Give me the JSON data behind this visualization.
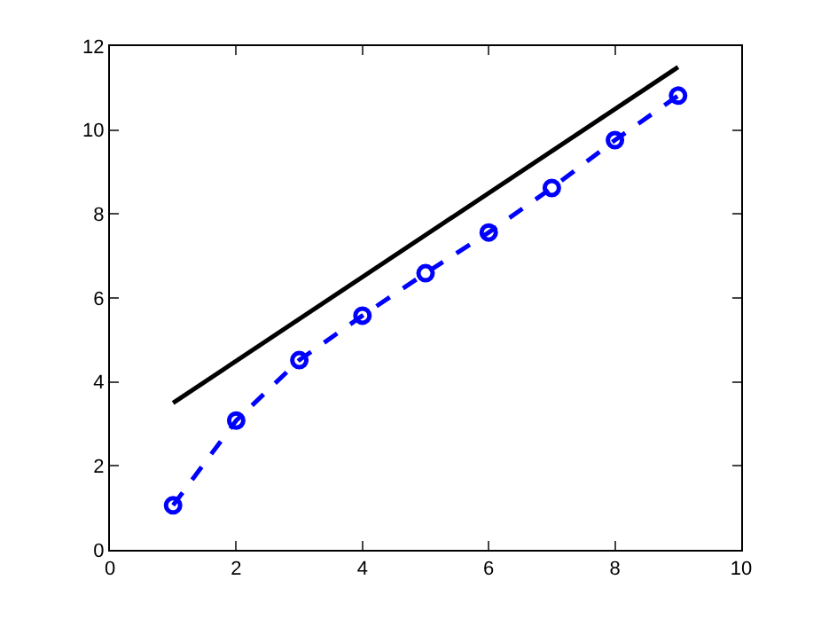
{
  "chart_data": {
    "type": "line",
    "x": [
      1,
      2,
      3,
      4,
      5,
      6,
      7,
      8,
      9
    ],
    "series": [
      {
        "color": "#000000",
        "x": [
          1,
          9
        ],
        "values": [
          3.5,
          11.5
        ],
        "line_style": "solid",
        "marker": "none"
      },
      {
        "color": "#0000ff",
        "values": [
          1.06,
          3.08,
          4.52,
          5.58,
          6.59,
          7.56,
          8.62,
          9.76,
          10.82
        ],
        "line_style": "dashed",
        "marker": "circle"
      }
    ],
    "xlim": [
      0,
      10
    ],
    "xticks": [
      0,
      2,
      4,
      6,
      8,
      10
    ],
    "ylim": [
      0,
      12
    ],
    "yticks": [
      0,
      2,
      4,
      6,
      8,
      10,
      12
    ],
    "grid": false
  }
}
